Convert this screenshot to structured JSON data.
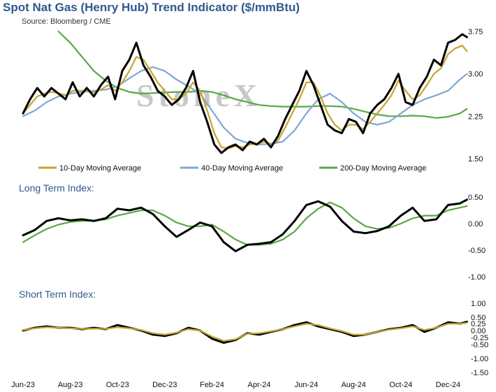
{
  "header": {
    "title": "Spot Nat Gas (Henry Hub) Trend Indicator ($/mmBtu)",
    "source": "Source: Bloomberg / CME",
    "watermark": "StoneX",
    "long_term_title": "Long Term Index:",
    "short_term_title": "Short Term Index:"
  },
  "colors": {
    "price": "#000000",
    "ma10": "#c6a52b",
    "ma40": "#7fa7d4",
    "ma200": "#5aa846",
    "title": "#2d5a8c"
  },
  "chart_data": [
    {
      "type": "line",
      "panel": "price",
      "yticks": [
        "3.75",
        "3.00",
        "2.25",
        "1.50"
      ],
      "ylim": [
        1.5,
        3.9
      ],
      "x_labels": [
        "Jun-23",
        "Aug-23",
        "Oct-23",
        "Dec-23",
        "Feb-24",
        "Apr-24",
        "Jun-24",
        "Aug-24",
        "Oct-24",
        "Dec-24"
      ],
      "x_months": [
        0,
        2,
        4,
        6,
        8,
        10,
        12,
        14,
        16,
        18
      ],
      "legend": [
        "10-Day Moving Average",
        "40-Day Moving Average",
        "200-Day Moving Average"
      ],
      "series": [
        {
          "name": "Spot",
          "color": "#000000",
          "x": [
            0,
            0.3,
            0.6,
            0.9,
            1.2,
            1.5,
            1.8,
            2.1,
            2.4,
            2.7,
            3,
            3.3,
            3.6,
            3.9,
            4.2,
            4.5,
            4.8,
            5.1,
            5.4,
            5.7,
            6,
            6.3,
            6.6,
            6.9,
            7.2,
            7.5,
            7.8,
            8.1,
            8.4,
            8.7,
            9,
            9.3,
            9.6,
            9.9,
            10.2,
            10.5,
            10.8,
            11.1,
            11.4,
            11.7,
            12,
            12.3,
            12.6,
            12.9,
            13.2,
            13.5,
            13.8,
            14.1,
            14.4,
            14.7,
            15,
            15.3,
            15.6,
            15.9,
            16.2,
            16.5,
            16.8,
            17.1,
            17.4,
            17.7,
            18,
            18.3,
            18.6,
            18.8
          ],
          "y": [
            2.3,
            2.55,
            2.75,
            2.6,
            2.75,
            2.65,
            2.55,
            2.85,
            2.6,
            2.75,
            2.6,
            2.8,
            2.95,
            2.55,
            3.05,
            3.25,
            3.55,
            3.15,
            2.95,
            2.7,
            2.6,
            2.45,
            2.55,
            2.75,
            3.05,
            2.5,
            2.15,
            1.75,
            1.6,
            1.7,
            1.75,
            1.65,
            1.8,
            1.75,
            1.85,
            1.7,
            1.9,
            2.2,
            2.45,
            2.7,
            3.05,
            2.8,
            2.45,
            2.1,
            2.0,
            1.95,
            2.2,
            2.15,
            1.95,
            2.3,
            2.45,
            2.55,
            2.75,
            3.0,
            2.5,
            2.45,
            2.75,
            2.95,
            3.25,
            3.15,
            3.55,
            3.6,
            3.7,
            3.65
          ]
        },
        {
          "name": "10-Day Moving Average",
          "color": "#c6a52b",
          "x": [
            0,
            0.3,
            0.6,
            0.9,
            1.2,
            1.5,
            1.8,
            2.1,
            2.4,
            2.7,
            3,
            3.3,
            3.6,
            3.9,
            4.2,
            4.5,
            4.8,
            5.1,
            5.4,
            5.7,
            6,
            6.3,
            6.6,
            6.9,
            7.2,
            7.5,
            7.8,
            8.1,
            8.4,
            8.7,
            9,
            9.3,
            9.6,
            9.9,
            10.2,
            10.5,
            10.8,
            11.1,
            11.4,
            11.7,
            12,
            12.3,
            12.6,
            12.9,
            13.2,
            13.5,
            13.8,
            14.1,
            14.4,
            14.7,
            15,
            15.3,
            15.6,
            15.9,
            16.2,
            16.5,
            16.8,
            17.1,
            17.4,
            17.7,
            18,
            18.3,
            18.6,
            18.8
          ],
          "y": [
            2.3,
            2.45,
            2.6,
            2.65,
            2.68,
            2.66,
            2.62,
            2.7,
            2.7,
            2.7,
            2.67,
            2.72,
            2.8,
            2.7,
            2.85,
            3.05,
            3.3,
            3.25,
            3.05,
            2.85,
            2.7,
            2.55,
            2.55,
            2.65,
            2.85,
            2.7,
            2.35,
            1.95,
            1.7,
            1.68,
            1.72,
            1.7,
            1.75,
            1.76,
            1.8,
            1.76,
            1.82,
            2.05,
            2.3,
            2.55,
            2.85,
            2.85,
            2.6,
            2.3,
            2.1,
            2.0,
            2.1,
            2.1,
            2.02,
            2.15,
            2.3,
            2.45,
            2.62,
            2.88,
            2.7,
            2.55,
            2.62,
            2.8,
            3.0,
            3.1,
            3.35,
            3.45,
            3.5,
            3.4
          ]
        },
        {
          "name": "40-Day Moving Average",
          "color": "#7fa7d4",
          "x": [
            0,
            0.5,
            1,
            1.5,
            2,
            2.5,
            3,
            3.5,
            4,
            4.5,
            5,
            5.5,
            6,
            6.5,
            7,
            7.5,
            8,
            8.5,
            9,
            9.5,
            10,
            10.5,
            11,
            11.5,
            12,
            12.5,
            13,
            13.5,
            14,
            14.5,
            15,
            15.5,
            16,
            16.5,
            17,
            17.5,
            18,
            18.5,
            18.8
          ],
          "y": [
            2.25,
            2.35,
            2.5,
            2.6,
            2.65,
            2.68,
            2.7,
            2.72,
            2.78,
            2.92,
            3.05,
            3.12,
            3.05,
            2.9,
            2.78,
            2.65,
            2.35,
            2.05,
            1.85,
            1.78,
            1.75,
            1.76,
            1.8,
            2.0,
            2.3,
            2.55,
            2.65,
            2.5,
            2.3,
            2.15,
            2.1,
            2.15,
            2.3,
            2.45,
            2.55,
            2.62,
            2.7,
            2.9,
            3.0
          ]
        },
        {
          "name": "200-Day Moving Average",
          "color": "#5aa846",
          "x": [
            1.5,
            2,
            2.5,
            3,
            3.5,
            4,
            4.5,
            5,
            5.5,
            6,
            6.5,
            7,
            7.5,
            8,
            8.5,
            9,
            9.5,
            10,
            10.5,
            11,
            11.5,
            12,
            12.5,
            13,
            13.5,
            14,
            14.5,
            15,
            15.5,
            16,
            16.5,
            17,
            17.5,
            18,
            18.5,
            18.8
          ],
          "y": [
            3.75,
            3.55,
            3.3,
            3.05,
            2.88,
            2.75,
            2.68,
            2.65,
            2.66,
            2.67,
            2.68,
            2.68,
            2.7,
            2.68,
            2.62,
            2.55,
            2.5,
            2.45,
            2.43,
            2.42,
            2.42,
            2.42,
            2.43,
            2.43,
            2.42,
            2.38,
            2.33,
            2.28,
            2.25,
            2.25,
            2.26,
            2.25,
            2.22,
            2.24,
            2.3,
            2.38
          ]
        }
      ]
    },
    {
      "type": "line",
      "panel": "long_term_index",
      "yticks": [
        "0.50",
        "0.00",
        "-0.50",
        "-1.00"
      ],
      "ylim": [
        -1.0,
        0.6
      ],
      "series": [
        {
          "name": "Long Term Index",
          "color": "#000000",
          "x": [
            0,
            0.5,
            1,
            1.5,
            2,
            2.5,
            3,
            3.5,
            4,
            4.5,
            5,
            5.5,
            6,
            6.5,
            7,
            7.5,
            8,
            8.5,
            9,
            9.5,
            10,
            10.5,
            11,
            11.5,
            12,
            12.5,
            13,
            13.5,
            14,
            14.5,
            15,
            15.5,
            16,
            16.5,
            17,
            17.5,
            18,
            18.5,
            18.8
          ],
          "y": [
            -0.22,
            -0.12,
            0.05,
            0.1,
            0.06,
            0.08,
            0.05,
            0.1,
            0.28,
            0.25,
            0.3,
            0.18,
            -0.05,
            -0.25,
            -0.12,
            0.02,
            -0.05,
            -0.35,
            -0.52,
            -0.4,
            -0.38,
            -0.35,
            -0.2,
            0.05,
            0.35,
            0.42,
            0.32,
            0.05,
            -0.15,
            -0.18,
            -0.14,
            -0.05,
            0.15,
            0.3,
            0.05,
            0.08,
            0.35,
            0.38,
            0.45
          ]
        },
        {
          "name": "Long Term Index (smoothed)",
          "color": "#5aa846",
          "x": [
            0,
            0.5,
            1,
            1.5,
            2,
            2.5,
            3,
            3.5,
            4,
            4.5,
            5,
            5.5,
            6,
            6.5,
            7,
            7.5,
            8,
            8.5,
            9,
            9.5,
            10,
            10.5,
            11,
            11.5,
            12,
            12.5,
            13,
            13.5,
            14,
            14.5,
            15,
            15.5,
            16,
            16.5,
            17,
            17.5,
            18,
            18.5,
            18.8
          ],
          "y": [
            -0.35,
            -0.22,
            -0.1,
            -0.02,
            0.03,
            0.05,
            0.05,
            0.08,
            0.15,
            0.2,
            0.25,
            0.25,
            0.15,
            0.02,
            -0.05,
            -0.05,
            -0.02,
            -0.15,
            -0.3,
            -0.4,
            -0.4,
            -0.38,
            -0.3,
            -0.15,
            0.1,
            0.28,
            0.4,
            0.3,
            0.1,
            -0.05,
            -0.1,
            -0.08,
            0.0,
            0.1,
            0.15,
            0.15,
            0.25,
            0.3,
            0.33
          ]
        }
      ]
    },
    {
      "type": "line",
      "panel": "short_term_index",
      "yticks": [
        "1.00",
        "0.50",
        "0.25",
        "0.00",
        "-0.25",
        "-0.50",
        "-1.00",
        "-1.50"
      ],
      "ylim": [
        -1.5,
        1.0
      ],
      "series": [
        {
          "name": "Short Term Index",
          "color": "#000000",
          "x": [
            0,
            0.5,
            1,
            1.5,
            2,
            2.5,
            3,
            3.5,
            4,
            4.5,
            5,
            5.5,
            6,
            6.5,
            7,
            7.5,
            8,
            8.5,
            9,
            9.5,
            10,
            10.5,
            11,
            11.5,
            12,
            12.5,
            13,
            13.5,
            14,
            14.5,
            15,
            15.5,
            16,
            16.5,
            17,
            17.5,
            18,
            18.5,
            18.8
          ],
          "y": [
            0.0,
            0.1,
            0.15,
            0.1,
            0.1,
            0.05,
            0.1,
            0.05,
            0.2,
            0.1,
            0.0,
            -0.15,
            -0.2,
            -0.1,
            0.1,
            0.0,
            -0.3,
            -0.45,
            -0.35,
            -0.1,
            -0.15,
            -0.05,
            0.05,
            0.2,
            0.3,
            0.15,
            0.05,
            -0.05,
            -0.2,
            -0.15,
            -0.05,
            0.05,
            0.1,
            0.2,
            -0.05,
            0.1,
            0.3,
            0.25,
            0.32
          ]
        },
        {
          "name": "Short Term Index (smoothed)",
          "color": "#c6a52b",
          "x": [
            0,
            0.5,
            1,
            1.5,
            2,
            2.5,
            3,
            3.5,
            4,
            4.5,
            5,
            5.5,
            6,
            6.5,
            7,
            7.5,
            8,
            8.5,
            9,
            9.5,
            10,
            10.5,
            11,
            11.5,
            12,
            12.5,
            13,
            13.5,
            14,
            14.5,
            15,
            15.5,
            16,
            16.5,
            17,
            17.5,
            18,
            18.5,
            18.8
          ],
          "y": [
            0.02,
            0.08,
            0.12,
            0.1,
            0.08,
            0.06,
            0.07,
            0.06,
            0.12,
            0.08,
            0.02,
            -0.1,
            -0.15,
            -0.08,
            0.05,
            0.0,
            -0.22,
            -0.38,
            -0.32,
            -0.12,
            -0.1,
            -0.03,
            0.05,
            0.15,
            0.25,
            0.2,
            0.08,
            -0.02,
            -0.15,
            -0.15,
            -0.05,
            0.03,
            0.08,
            0.15,
            0.02,
            0.1,
            0.25,
            0.25,
            0.28
          ]
        }
      ]
    }
  ]
}
